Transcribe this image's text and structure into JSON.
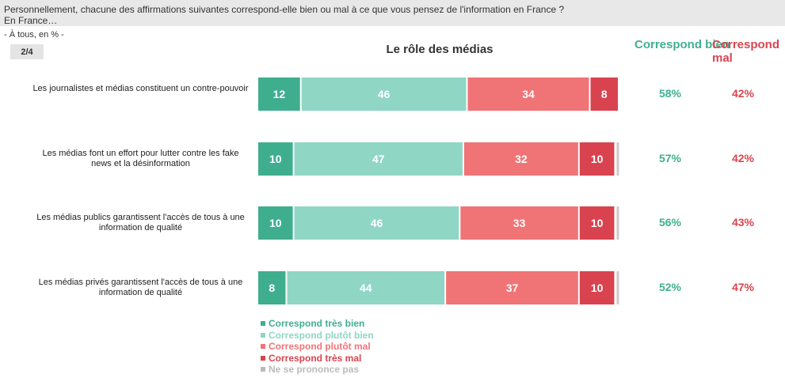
{
  "header": {
    "question": "Personnellement, chacune des affirmations suivantes correspond-elle bien ou mal à ce que vous pensez de l'information en France ?",
    "subject": "En France…",
    "base": "- À tous, en % -",
    "page": "2/4"
  },
  "columns": {
    "good": "Correspond bien",
    "bad": "Correspond mal"
  },
  "colors": {
    "tres_bien": "#3fae8e",
    "plutot_bien": "#8fd6c4",
    "plutot_mal": "#f07476",
    "tres_mal": "#d9434f",
    "nspp": "#cccccc"
  },
  "chart_data": {
    "type": "bar",
    "orientation": "horizontal",
    "stacked": true,
    "title": "Le rôle des médias",
    "categories": [
      "Les journalistes et médias constituent un contre-pouvoir",
      "Les médias font un effort pour lutter contre les fake news et la désinformation",
      "Les médias publics garantissent l'accès de tous à une information de qualité",
      "Les médias privés garantissent l'accès de tous à une information de qualité"
    ],
    "series": [
      {
        "name": "Correspond très bien",
        "values": [
          12,
          10,
          10,
          8
        ]
      },
      {
        "name": "Correspond plutôt bien",
        "values": [
          46,
          47,
          46,
          44
        ]
      },
      {
        "name": "Correspond plutôt mal",
        "values": [
          34,
          32,
          33,
          37
        ]
      },
      {
        "name": "Correspond très mal",
        "values": [
          8,
          10,
          10,
          10
        ]
      },
      {
        "name": "Ne se prononce pas",
        "values": [
          0,
          1,
          1,
          1
        ]
      }
    ],
    "totals": {
      "good": [
        "58%",
        "57%",
        "56%",
        "52%"
      ],
      "bad": [
        "42%",
        "42%",
        "43%",
        "47%"
      ]
    },
    "xlim": [
      0,
      100
    ],
    "grid": false,
    "legend": "bottom"
  }
}
